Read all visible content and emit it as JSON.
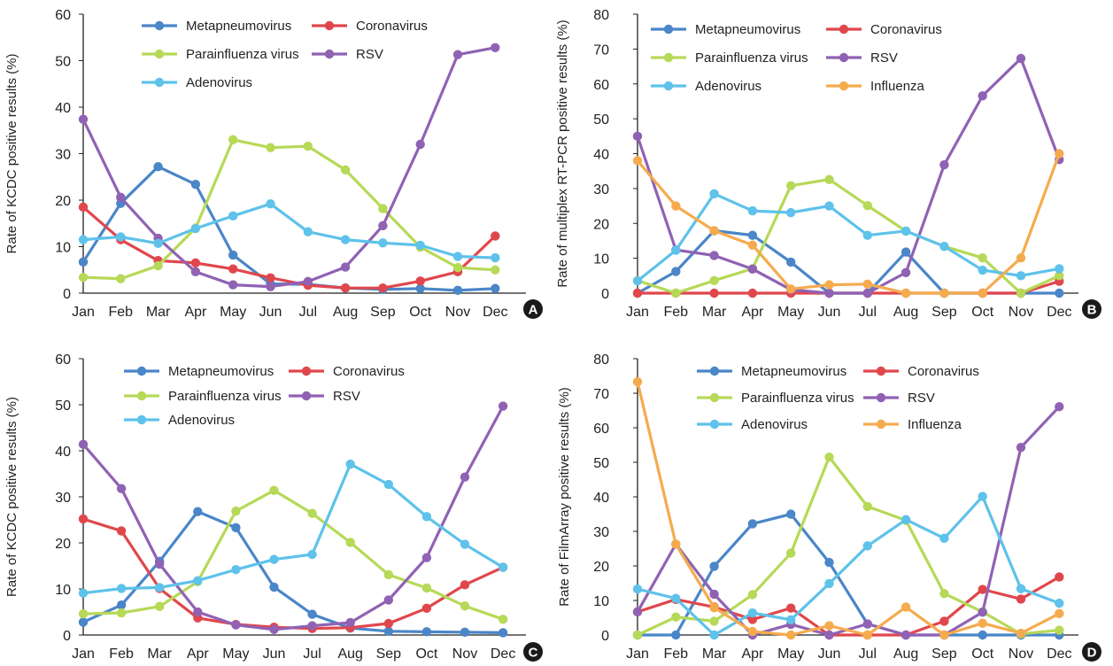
{
  "colors": {
    "Metapneumovirus": "#4a86c8",
    "Coronavirus": "#e0474c",
    "Parainfluenza virus": "#b6d957",
    "RSV": "#9062b3",
    "Adenovirus": "#5ec2ea",
    "Influenza": "#f5ab4d"
  },
  "chart_data": [
    {
      "panel": "A",
      "type": "line",
      "ylabel": "Rate of KCDC positive results (%)",
      "xlabel": "",
      "categories": [
        "Jan",
        "Feb",
        "Mar",
        "Apr",
        "May",
        "Jun",
        "Jul",
        "Aug",
        "Sep",
        "Oct",
        "Nov",
        "Dec"
      ],
      "ylim": [
        0,
        60
      ],
      "yticks": [
        0,
        10,
        20,
        30,
        40,
        50,
        60
      ],
      "legend": [
        [
          "Metapneumovirus",
          "Coronavirus"
        ],
        [
          "Parainfluenza virus",
          "RSV"
        ],
        [
          "Adenovirus"
        ]
      ],
      "series": [
        {
          "name": "Metapneumovirus",
          "values": [
            6.7,
            19.3,
            27.2,
            23.4,
            8.2,
            2.0,
            1.9,
            1.1,
            0.8,
            1.0,
            0.6,
            1.0
          ]
        },
        {
          "name": "Coronavirus",
          "values": [
            18.5,
            11.5,
            7.0,
            6.5,
            5.2,
            3.3,
            1.7,
            1.1,
            1.1,
            2.6,
            4.6,
            12.3
          ]
        },
        {
          "name": "Parainfluenza virus",
          "values": [
            3.4,
            3.1,
            5.9,
            14.0,
            33.0,
            31.3,
            31.6,
            26.5,
            18.2,
            9.9,
            5.5,
            5.0
          ]
        },
        {
          "name": "RSV",
          "values": [
            37.4,
            20.6,
            11.8,
            4.6,
            1.8,
            1.4,
            2.5,
            5.6,
            14.5,
            32.0,
            51.3,
            52.8
          ]
        },
        {
          "name": "Adenovirus",
          "values": [
            11.5,
            12.1,
            10.7,
            13.9,
            16.6,
            19.2,
            13.2,
            11.5,
            10.8,
            10.3,
            7.9,
            7.6
          ]
        }
      ]
    },
    {
      "panel": "B",
      "type": "line",
      "ylabel": "Rate of multiplex RT-PCR positive results (%)",
      "xlabel": "",
      "categories": [
        "Jan",
        "Feb",
        "Mar",
        "Apr",
        "May",
        "Jun",
        "Jul",
        "Aug",
        "Sep",
        "Oct",
        "Nov",
        "Dec"
      ],
      "ylim": [
        0,
        80
      ],
      "yticks": [
        0,
        10,
        20,
        30,
        40,
        50,
        60,
        70,
        80
      ],
      "legend": [
        [
          "Metapneumovirus",
          "Coronavirus"
        ],
        [
          "Parainfluenza virus",
          "RSV"
        ],
        [
          "Adenovirus",
          "Influenza"
        ]
      ],
      "series": [
        {
          "name": "Metapneumovirus",
          "values": [
            0,
            6.2,
            17.9,
            16.6,
            8.9,
            0,
            0,
            11.8,
            0,
            0,
            0,
            0
          ]
        },
        {
          "name": "Coronavirus",
          "values": [
            0,
            0,
            0,
            0,
            0,
            0,
            0,
            0,
            0,
            0,
            0,
            3.4
          ]
        },
        {
          "name": "Parainfluenza virus",
          "values": [
            3.6,
            0,
            3.6,
            7.0,
            30.8,
            32.6,
            25.1,
            17.8,
            13.4,
            10.1,
            0,
            5.0
          ]
        },
        {
          "name": "RSV",
          "values": [
            45.0,
            12.4,
            10.8,
            6.9,
            1.0,
            0,
            0,
            5.9,
            36.8,
            56.6,
            67.3,
            38.3
          ]
        },
        {
          "name": "Adenovirus",
          "values": [
            3.5,
            12.3,
            28.5,
            23.6,
            23.1,
            25.0,
            16.6,
            17.8,
            13.4,
            6.6,
            5.0,
            7.0
          ]
        },
        {
          "name": "Influenza",
          "values": [
            38.0,
            25.0,
            17.9,
            13.8,
            1.2,
            2.4,
            2.6,
            0,
            0,
            0,
            10.1,
            40.0
          ]
        }
      ]
    },
    {
      "panel": "C",
      "type": "line",
      "ylabel": "Rate of KCDC positive results (%)",
      "xlabel": "",
      "categories": [
        "Jan",
        "Feb",
        "Mar",
        "Apr",
        "May",
        "Jun",
        "Jul",
        "Aug",
        "Sep",
        "Oct",
        "Nov",
        "Dec"
      ],
      "ylim": [
        0,
        60
      ],
      "yticks": [
        0,
        10,
        20,
        30,
        40,
        50,
        60
      ],
      "legend": [
        [
          "Metapneumovirus",
          "Coronavirus"
        ],
        [
          "Parainfluenza virus",
          "RSV"
        ],
        [
          "Adenovirus"
        ]
      ],
      "series": [
        {
          "name": "Metapneumovirus",
          "values": [
            2.8,
            6.5,
            16.0,
            26.8,
            23.3,
            10.4,
            4.5,
            1.5,
            0.8,
            0.7,
            0.6,
            0.5
          ]
        },
        {
          "name": "Coronavirus",
          "values": [
            25.2,
            22.6,
            10.1,
            3.7,
            2.3,
            1.7,
            1.4,
            1.6,
            2.5,
            5.8,
            10.9,
            14.7
          ]
        },
        {
          "name": "Parainfluenza virus",
          "values": [
            4.6,
            4.8,
            6.2,
            11.6,
            26.9,
            31.4,
            26.4,
            20.1,
            13.1,
            10.2,
            6.3,
            3.4
          ]
        },
        {
          "name": "RSV",
          "values": [
            41.4,
            31.8,
            15.4,
            5.0,
            2.2,
            1.2,
            2.0,
            2.7,
            7.6,
            16.8,
            34.3,
            49.7
          ]
        },
        {
          "name": "Adenovirus",
          "values": [
            9.1,
            10.1,
            10.3,
            11.8,
            14.2,
            16.4,
            17.5,
            37.1,
            32.7,
            25.7,
            19.7,
            14.7
          ]
        }
      ]
    },
    {
      "panel": "D",
      "type": "line",
      "ylabel": "Rate of FilmArray positive results (%)",
      "xlabel": "",
      "categories": [
        "Jan",
        "Feb",
        "Mar",
        "Apr",
        "May",
        "Jun",
        "Jul",
        "Aug",
        "Sep",
        "Oct",
        "Nov",
        "Dec"
      ],
      "ylim": [
        0,
        80
      ],
      "yticks": [
        0,
        10,
        20,
        30,
        40,
        50,
        60,
        70,
        80
      ],
      "legend": [
        [
          "Metapneumovirus",
          "Coronavirus"
        ],
        [
          "Parainfluenza virus",
          "RSV"
        ],
        [
          "Adenovirus",
          "Influenza"
        ]
      ],
      "series": [
        {
          "name": "Metapneumovirus",
          "values": [
            0,
            0,
            19.9,
            32.2,
            35.0,
            21.0,
            3.2,
            0,
            0,
            0,
            0,
            0
          ]
        },
        {
          "name": "Coronavirus",
          "values": [
            6.7,
            10.3,
            8.1,
            4.5,
            7.8,
            0,
            0,
            0,
            4.0,
            13.2,
            10.4,
            16.8
          ]
        },
        {
          "name": "Parainfluenza virus",
          "values": [
            0,
            5.2,
            4.0,
            11.7,
            23.7,
            51.5,
            37.2,
            33.2,
            12.0,
            6.7,
            0.3,
            1.4
          ]
        },
        {
          "name": "RSV",
          "values": [
            6.7,
            26.3,
            11.8,
            0,
            3.1,
            0,
            3.2,
            0,
            0,
            6.6,
            54.3,
            66.1
          ]
        },
        {
          "name": "Adenovirus",
          "values": [
            13.3,
            10.6,
            0,
            6.4,
            4.4,
            14.9,
            25.8,
            33.4,
            28.0,
            40.1,
            13.4,
            9.2
          ]
        },
        {
          "name": "Influenza",
          "values": [
            73.3,
            26.3,
            7.9,
            1.0,
            0,
            2.7,
            0,
            8.1,
            0,
            3.4,
            0.5,
            6.2
          ]
        }
      ]
    }
  ]
}
